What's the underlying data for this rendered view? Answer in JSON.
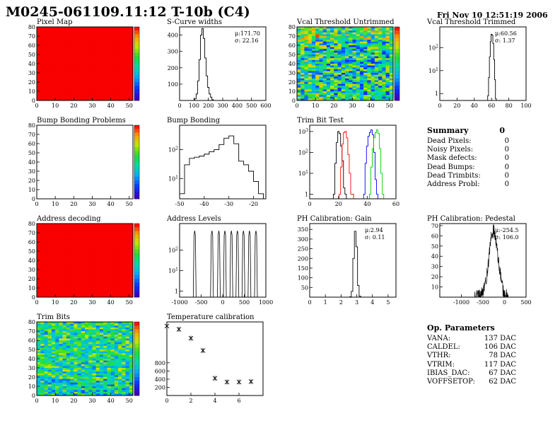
{
  "header": {
    "title": "M0245-061109.11:12 T-10b (C4)",
    "date": "Fri Nov 10 12:51:19 2006"
  },
  "colors": {
    "map_red": "#ff0000",
    "line": "#000000",
    "trim_red": "#ff0000",
    "trim_blue": "#0000ff",
    "trim_green": "#00cc00"
  },
  "chart_data": [
    {
      "id": "pixel-map",
      "type": "heatmap",
      "title": "Pixel Map",
      "xlim": [
        0,
        52
      ],
      "ylim": [
        0,
        80
      ],
      "uniform_level": 1.0,
      "xticks": [
        0,
        10,
        20,
        30,
        40,
        50
      ],
      "yticks": [
        0,
        10,
        20,
        30,
        40,
        50,
        60,
        70,
        80
      ],
      "palette_labels": [
        "",
        "",
        "",
        "",
        "",
        "",
        "",
        "",
        "",
        ""
      ]
    },
    {
      "id": "scurve-widths",
      "type": "histogram",
      "title": "S-Curve widths",
      "mean": "μ:171.70",
      "sigma": "σ: 22.16",
      "xlim": [
        0,
        600
      ],
      "ylim": [
        0,
        450
      ],
      "xticks": [
        0,
        100,
        200,
        300,
        400,
        500,
        600
      ],
      "yticks": [
        100,
        200,
        300,
        400
      ],
      "x": [
        100,
        110,
        120,
        130,
        140,
        150,
        160,
        170,
        180,
        190,
        200,
        210,
        220,
        230,
        240
      ],
      "values": [
        0,
        10,
        40,
        120,
        250,
        400,
        440,
        380,
        260,
        150,
        80,
        40,
        20,
        5,
        0
      ]
    },
    {
      "id": "vcal-untrimmed",
      "type": "heatmap",
      "title": "Vcal Threshold Untrimmed",
      "xlim": [
        0,
        52
      ],
      "ylim": [
        0,
        80
      ],
      "xticks": [
        0,
        10,
        20,
        30,
        40,
        50
      ],
      "yticks": [
        0,
        10,
        20,
        30,
        40,
        50,
        60,
        70,
        80
      ]
    },
    {
      "id": "vcal-trimmed",
      "type": "histogram",
      "title": "Vcal Threshold Trimmed",
      "mean": "μ:60.56",
      "sigma": "σ: 1.37",
      "log_y": true,
      "xlim": [
        0,
        100
      ],
      "ylim": [
        0.5,
        800
      ],
      "xticks": [
        0,
        20,
        40,
        60,
        80,
        100
      ],
      "ytick_values": [
        1,
        10,
        100
      ],
      "x": [
        56,
        57,
        58,
        59,
        60,
        61,
        62,
        63,
        64,
        65,
        66
      ],
      "values": [
        0.8,
        5,
        40,
        180,
        380,
        350,
        150,
        30,
        4,
        0.6,
        0
      ]
    },
    {
      "id": "bump-bonding-problems",
      "type": "heatmap",
      "title": "Bump Bonding Problems",
      "empty": true,
      "xlim": [
        0,
        52
      ],
      "ylim": [
        0,
        80
      ],
      "xticks": [
        0,
        10,
        20,
        30,
        40,
        50
      ],
      "yticks": [
        0,
        10,
        20,
        30,
        40,
        50,
        60,
        70,
        80
      ]
    },
    {
      "id": "bump-bonding",
      "type": "histogram",
      "title": "Bump Bonding",
      "log_y": true,
      "xlim": [
        -50,
        -15
      ],
      "ylim": [
        2,
        700
      ],
      "xticks": [
        -50,
        -40,
        -30,
        -20
      ],
      "ytick_values": [
        10,
        100
      ],
      "x": [
        -49,
        -47,
        -45,
        -43,
        -41,
        -39,
        -37,
        -35,
        -33,
        -31,
        -29,
        -27,
        -25,
        -23,
        -21,
        -19,
        -17
      ],
      "values": [
        3,
        30,
        50,
        55,
        60,
        70,
        85,
        100,
        150,
        250,
        300,
        160,
        40,
        30,
        18,
        8,
        3
      ]
    },
    {
      "id": "trim-bit-test",
      "type": "histogram",
      "title": "Trim Bit Test",
      "log_y": true,
      "xlim": [
        0,
        60
      ],
      "ylim": [
        0.6,
        2000
      ],
      "xticks": [
        0,
        20,
        40,
        60
      ],
      "ytick_values": [
        1,
        10,
        100,
        1000
      ],
      "series": [
        {
          "color": "#000000",
          "x": [
            17,
            18,
            19,
            20,
            21,
            22,
            23,
            24,
            25
          ],
          "values": [
            1,
            30,
            300,
            1000,
            800,
            200,
            40,
            2,
            1
          ]
        },
        {
          "color": "#ff0000",
          "x": [
            21,
            22,
            23,
            24,
            25,
            26,
            27,
            28,
            29,
            30
          ],
          "values": [
            1,
            20,
            250,
            900,
            1000,
            500,
            80,
            10,
            1,
            1
          ]
        },
        {
          "color": "#0000ff",
          "x": [
            38,
            39,
            40,
            41,
            42,
            43,
            44,
            45,
            46,
            47
          ],
          "values": [
            1,
            30,
            200,
            600,
            900,
            1200,
            700,
            100,
            5,
            1
          ]
        },
        {
          "color": "#00cc00",
          "x": [
            42,
            43,
            44,
            45,
            46,
            47,
            48,
            49,
            50,
            51
          ],
          "values": [
            1,
            20,
            150,
            500,
            900,
            1200,
            800,
            150,
            10,
            1
          ]
        }
      ]
    },
    {
      "id": "address-decoding",
      "type": "heatmap",
      "title": "Address decoding",
      "uniform_level": 1.0,
      "xlim": [
        0,
        52
      ],
      "ylim": [
        0,
        80
      ],
      "xticks": [
        0,
        10,
        20,
        30,
        40,
        50
      ],
      "yticks": [
        0,
        10,
        20,
        30,
        40,
        50,
        60,
        70,
        80
      ]
    },
    {
      "id": "address-levels",
      "type": "histogram",
      "title": "Address Levels",
      "log_y": true,
      "xlim": [
        -1000,
        1000
      ],
      "ylim": [
        0.5,
        2000
      ],
      "xticks": [
        -1000,
        -500,
        0,
        500,
        1000
      ],
      "ytick_values": [
        1,
        10,
        100
      ],
      "peaks": [
        -650,
        -250,
        -90,
        50,
        200,
        340,
        480,
        620,
        770
      ],
      "peak_value": 900
    },
    {
      "id": "ph-gain",
      "type": "histogram",
      "title": "PH Calibration: Gain",
      "mean": "μ:2.94",
      "sigma": "σ: 0.11",
      "xlim": [
        0,
        5.5
      ],
      "ylim": [
        0,
        380
      ],
      "xticks": [
        0,
        1,
        2,
        3,
        4,
        5
      ],
      "yticks": [
        50,
        100,
        150,
        200,
        250,
        300,
        350
      ],
      "x": [
        2.6,
        2.7,
        2.8,
        2.9,
        3.0,
        3.1,
        3.2,
        3.3
      ],
      "values": [
        2,
        30,
        200,
        340,
        260,
        60,
        5,
        0
      ]
    },
    {
      "id": "ph-pedestal",
      "type": "histogram",
      "title": "PH Calibration: Pedestal",
      "mean": "μ:-254.5",
      "sigma": "σ: 106.0",
      "xlim": [
        -1500,
        500
      ],
      "ylim": [
        0,
        72
      ],
      "xticks": [
        -1000,
        -500,
        0,
        500
      ],
      "yticks": [
        10,
        20,
        30,
        40,
        50,
        60,
        70
      ],
      "x": [
        -700,
        -600,
        -500,
        -400,
        -350,
        -300,
        -250,
        -200,
        -150,
        -100,
        0,
        100
      ],
      "values": [
        0,
        2,
        8,
        20,
        35,
        50,
        65,
        60,
        45,
        30,
        8,
        0
      ]
    },
    {
      "id": "trim-bits",
      "type": "heatmap",
      "title": "Trim Bits",
      "xlim": [
        0,
        52
      ],
      "ylim": [
        0,
        80
      ],
      "xticks": [
        0,
        10,
        20,
        30,
        40,
        50
      ],
      "yticks": [
        0,
        10,
        20,
        30,
        40,
        50,
        60,
        70,
        80
      ]
    },
    {
      "id": "temperature-calibration",
      "type": "scatter",
      "title": "Temperature calibration",
      "xlim": [
        0,
        8
      ],
      "ylim": [
        0,
        1800
      ],
      "xticks": [
        0,
        2,
        4,
        6
      ],
      "yticks": [
        200,
        400,
        600,
        800
      ],
      "x": [
        0,
        1,
        2,
        3,
        4,
        5,
        6,
        7
      ],
      "values": [
        1700,
        1620,
        1400,
        1100,
        420,
        330,
        330,
        340
      ]
    }
  ],
  "summary": {
    "title": "Summary",
    "total": "0",
    "rows": [
      {
        "label": "Dead Pixels:",
        "value": "0"
      },
      {
        "label": "Noisy Pixels:",
        "value": "0"
      },
      {
        "label": "Mask defects:",
        "value": "0"
      },
      {
        "label": "Dead Bumps:",
        "value": "0"
      },
      {
        "label": "Dead Trimbits:",
        "value": "0"
      },
      {
        "label": "Address Probl:",
        "value": "0"
      }
    ]
  },
  "op_params": {
    "title": "Op. Parameters",
    "rows": [
      {
        "label": "VANA:",
        "value": "137 DAC"
      },
      {
        "label": "CALDEL:",
        "value": "106 DAC"
      },
      {
        "label": "VTHR:",
        "value": "78 DAC"
      },
      {
        "label": "VTRIM:",
        "value": "117 DAC"
      },
      {
        "label": "IBIAS_DAC:",
        "value": "67 DAC"
      },
      {
        "label": "VOFFSETOP:",
        "value": "62 DAC"
      }
    ]
  }
}
